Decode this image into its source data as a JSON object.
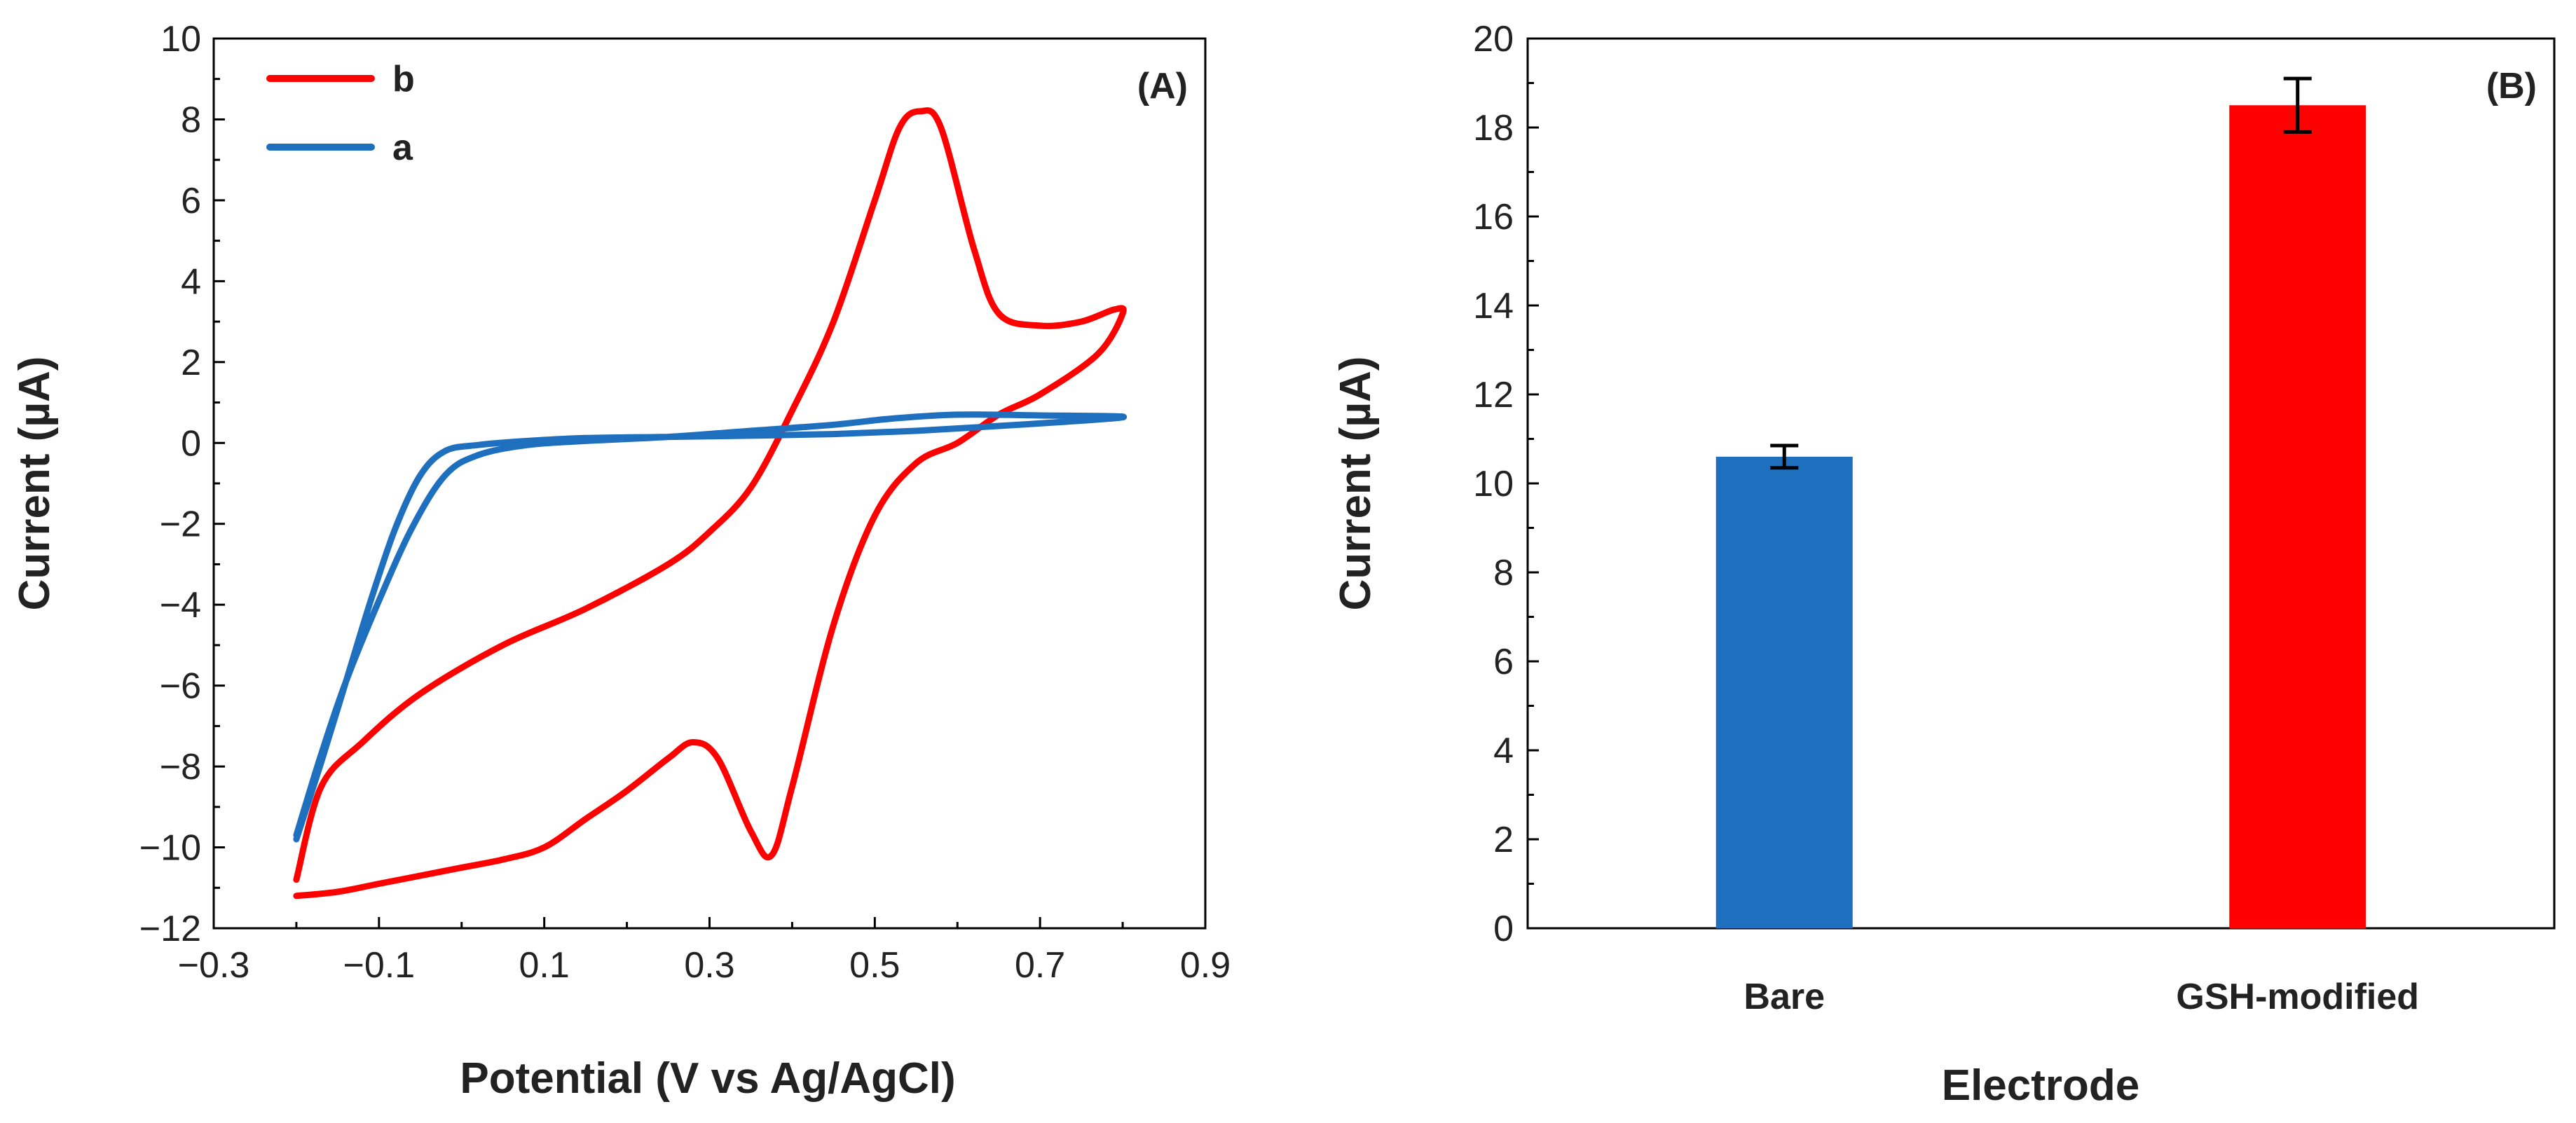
{
  "chart_data": [
    {
      "type": "line",
      "panel_label": "(A)",
      "xlabel": "Potential (V vs Ag/AgCl)",
      "ylabel": "Current (µA)",
      "xlim": [
        -0.3,
        0.9
      ],
      "ylim": [
        -12,
        10
      ],
      "x_ticks": [
        -0.3,
        -0.1,
        0.1,
        0.3,
        0.5,
        0.7,
        0.9
      ],
      "x_tick_labels": [
        "−0.3",
        "−0.1",
        "0.1",
        "0.3",
        "0.5",
        "0.7",
        "0.9"
      ],
      "y_ticks": [
        -12,
        -10,
        -8,
        -6,
        -4,
        -2,
        0,
        2,
        4,
        6,
        8,
        10
      ],
      "y_tick_labels": [
        "−12",
        "−10",
        "−8",
        "−6",
        "−4",
        "−2",
        "0",
        "2",
        "4",
        "6",
        "8",
        "10"
      ],
      "legend_position": "top-left",
      "series": [
        {
          "name": "b",
          "color": "#ff0000",
          "points": [
            [
              -0.2,
              -10.8
            ],
            [
              -0.17,
              -8.5
            ],
            [
              -0.12,
              -7.4
            ],
            [
              -0.05,
              -6.2
            ],
            [
              0.05,
              -5.0
            ],
            [
              0.15,
              -4.1
            ],
            [
              0.25,
              -3.0
            ],
            [
              0.3,
              -2.2
            ],
            [
              0.35,
              -1.1
            ],
            [
              0.4,
              0.8
            ],
            [
              0.45,
              3.0
            ],
            [
              0.5,
              6.0
            ],
            [
              0.53,
              7.8
            ],
            [
              0.555,
              8.2
            ],
            [
              0.58,
              7.8
            ],
            [
              0.62,
              4.8
            ],
            [
              0.65,
              3.2
            ],
            [
              0.7,
              2.9
            ],
            [
              0.75,
              3.0
            ],
            [
              0.79,
              3.3
            ],
            [
              0.8,
              3.2
            ],
            [
              0.77,
              2.2
            ],
            [
              0.7,
              1.2
            ],
            [
              0.65,
              0.7
            ],
            [
              0.6,
              0.0
            ],
            [
              0.55,
              -0.5
            ],
            [
              0.5,
              -1.8
            ],
            [
              0.45,
              -4.5
            ],
            [
              0.4,
              -8.5
            ],
            [
              0.375,
              -10.2
            ],
            [
              0.35,
              -9.6
            ],
            [
              0.31,
              -7.8
            ],
            [
              0.28,
              -7.4
            ],
            [
              0.25,
              -7.8
            ],
            [
              0.2,
              -8.6
            ],
            [
              0.15,
              -9.3
            ],
            [
              0.1,
              -10.0
            ],
            [
              0.05,
              -10.3
            ],
            [
              0.0,
              -10.5
            ],
            [
              -0.05,
              -10.7
            ],
            [
              -0.1,
              -10.9
            ],
            [
              -0.15,
              -11.1
            ],
            [
              -0.2,
              -11.2
            ]
          ]
        },
        {
          "name": "a",
          "color": "#1f6fbf",
          "points": [
            [
              -0.2,
              -9.7
            ],
            [
              -0.17,
              -7.7
            ],
            [
              -0.14,
              -5.9
            ],
            [
              -0.1,
              -3.9
            ],
            [
              -0.06,
              -2.1
            ],
            [
              -0.02,
              -0.8
            ],
            [
              0.02,
              -0.3
            ],
            [
              0.08,
              -0.05
            ],
            [
              0.15,
              0.05
            ],
            [
              0.25,
              0.15
            ],
            [
              0.35,
              0.3
            ],
            [
              0.45,
              0.45
            ],
            [
              0.52,
              0.6
            ],
            [
              0.6,
              0.7
            ],
            [
              0.7,
              0.68
            ],
            [
              0.8,
              0.65
            ],
            [
              0.75,
              0.55
            ],
            [
              0.65,
              0.42
            ],
            [
              0.55,
              0.3
            ],
            [
              0.45,
              0.22
            ],
            [
              0.35,
              0.18
            ],
            [
              0.25,
              0.15
            ],
            [
              0.15,
              0.12
            ],
            [
              0.08,
              0.05
            ],
            [
              0.02,
              -0.05
            ],
            [
              -0.02,
              -0.2
            ],
            [
              -0.05,
              -0.8
            ],
            [
              -0.08,
              -2.1
            ],
            [
              -0.11,
              -3.9
            ],
            [
              -0.14,
              -5.9
            ],
            [
              -0.17,
              -7.9
            ],
            [
              -0.2,
              -9.8
            ]
          ]
        }
      ]
    },
    {
      "type": "bar",
      "panel_label": "(B)",
      "xlabel": "Electrode",
      "ylabel": "Current (µA)",
      "ylim": [
        0,
        20
      ],
      "y_ticks": [
        0,
        2,
        4,
        6,
        8,
        10,
        12,
        14,
        16,
        18,
        20
      ],
      "y_tick_labels": [
        "0",
        "2",
        "4",
        "6",
        "8",
        "10",
        "12",
        "14",
        "16",
        "18",
        "20"
      ],
      "categories": [
        "Bare",
        "GSH-modified"
      ],
      "values": [
        10.6,
        18.5
      ],
      "errors": [
        0.25,
        0.6
      ],
      "colors": [
        "#1f6fbf",
        "#ff0000"
      ]
    }
  ]
}
